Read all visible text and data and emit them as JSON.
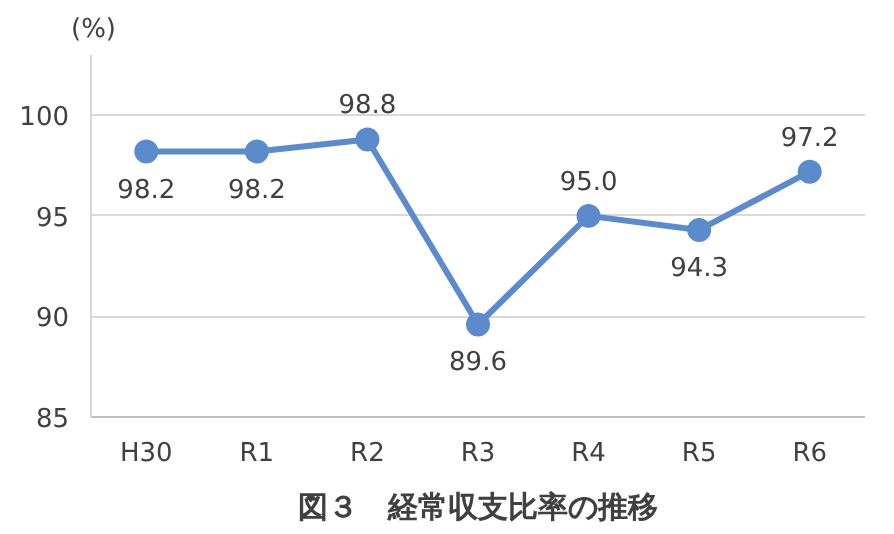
{
  "chart_data": {
    "type": "line",
    "title": "図３　経常収支比率の推移",
    "ylabel": "(%)",
    "categories": [
      "H30",
      "R1",
      "R2",
      "R3",
      "R4",
      "R5",
      "R6"
    ],
    "series": [
      {
        "color": "#5b8bcb",
        "values": [
          98.2,
          98.2,
          98.8,
          89.6,
          95.0,
          94.3,
          97.2
        ],
        "value_labels": [
          "98.2",
          "98.2",
          "98.8",
          "89.6",
          "95.0",
          "94.3",
          "97.2"
        ]
      }
    ],
    "ylim": [
      85,
      103
    ],
    "yticks": [
      85,
      90,
      95,
      100
    ],
    "grid": "y",
    "marker": "circle",
    "line_style": "solid"
  }
}
